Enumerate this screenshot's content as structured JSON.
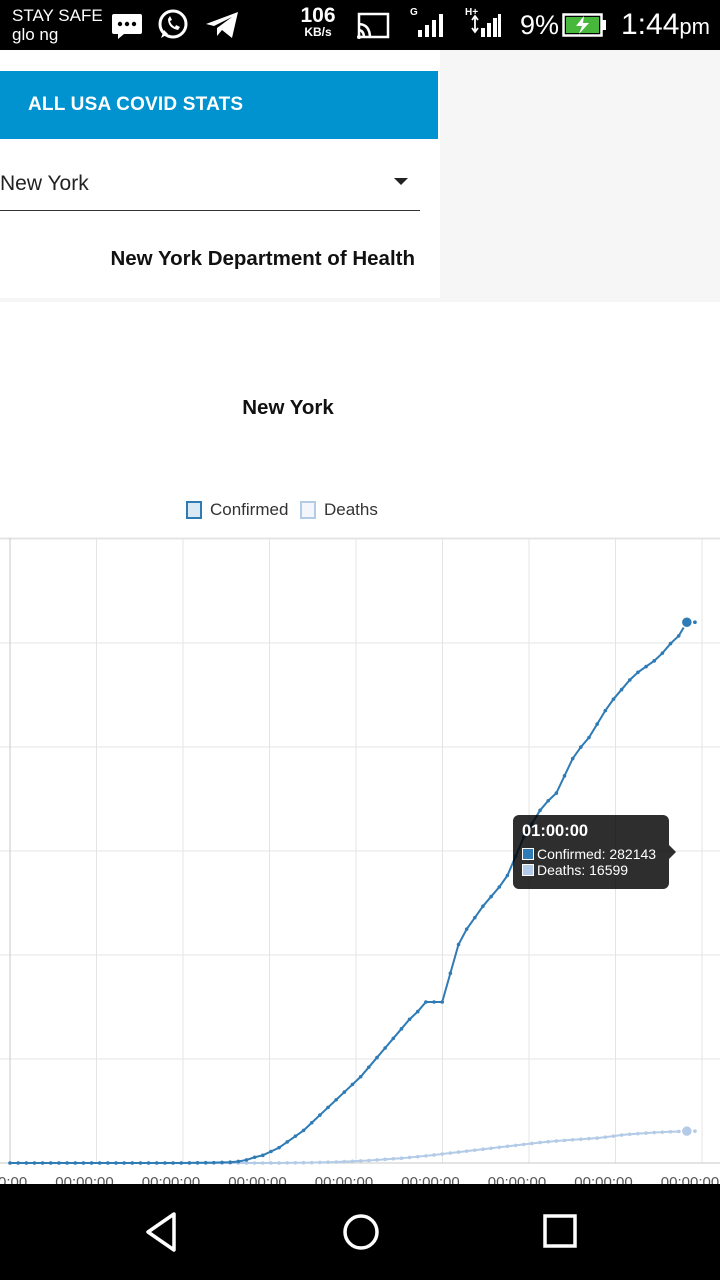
{
  "status_bar": {
    "carrier_line1": "STAY SAFE",
    "carrier_line2": "glo ng",
    "net_speed_value": "106",
    "net_speed_unit": "KB/s",
    "sim1_network": "G",
    "sim2_network": "H+",
    "battery_percent": "9%",
    "time": "1:44",
    "time_suffix": "pm",
    "icons": [
      "messaging-icon",
      "whatsapp-icon",
      "telegram-icon",
      "cast-icon",
      "signal-icon",
      "battery-charging-icon"
    ]
  },
  "app": {
    "header_button": "ALL USA COVID STATS",
    "state_select": {
      "value": "New York"
    },
    "source_label": "New York Department of Health"
  },
  "chart_data": {
    "type": "line",
    "title": "New York",
    "legend": [
      {
        "name": "Confirmed",
        "color": "#2e7bb5"
      },
      {
        "name": "Deaths",
        "color": "#b4cbe8"
      }
    ],
    "x_tick_label": "00:00:00",
    "x_tick_count": 9,
    "ylim": [
      0,
      300000
    ],
    "series": [
      {
        "name": "Confirmed",
        "color": "#2e7bb5",
        "values": [
          0,
          0,
          0,
          0,
          0,
          0,
          0,
          0,
          0,
          0,
          0,
          0,
          0,
          0,
          0,
          0,
          0,
          0,
          0,
          0,
          0,
          0,
          50,
          100,
          150,
          200,
          300,
          400,
          800,
          1600,
          3000,
          4000,
          6000,
          8000,
          11000,
          14000,
          17000,
          21000,
          25000,
          29000,
          33000,
          37000,
          41000,
          45000,
          50000,
          55000,
          60000,
          65000,
          70000,
          75000,
          79000,
          84000,
          84000,
          84000,
          99000,
          114000,
          122000,
          128000,
          134000,
          139000,
          144000,
          150000,
          160000,
          170000,
          177000,
          184000,
          189000,
          193000,
          202000,
          211000,
          217000,
          222000,
          229000,
          236000,
          242000,
          247000,
          252000,
          256000,
          259000,
          262000,
          266000,
          271000,
          275000,
          282143,
          282143
        ]
      },
      {
        "name": "Deaths",
        "color": "#b4cbe8",
        "values": [
          0,
          0,
          0,
          0,
          0,
          0,
          0,
          0,
          0,
          0,
          0,
          0,
          0,
          0,
          0,
          0,
          0,
          0,
          0,
          0,
          0,
          0,
          0,
          0,
          0,
          0,
          0,
          0,
          0,
          0,
          0,
          0,
          10,
          30,
          60,
          100,
          150,
          200,
          300,
          400,
          500,
          700,
          900,
          1100,
          1300,
          1600,
          1900,
          2200,
          2500,
          2900,
          3300,
          3700,
          4200,
          4700,
          5200,
          5700,
          6200,
          6700,
          7200,
          7700,
          8200,
          8700,
          9200,
          9700,
          10200,
          10700,
          11100,
          11500,
          11800,
          12100,
          12400,
          12700,
          13000,
          13500,
          14000,
          14600,
          15000,
          15300,
          15600,
          15900,
          16100,
          16300,
          16450,
          16599,
          16599
        ]
      }
    ],
    "tooltip": {
      "title": "01:00:00",
      "confirmed_label": "Confirmed: 282143",
      "deaths_label": "Deaths: 16599"
    }
  }
}
